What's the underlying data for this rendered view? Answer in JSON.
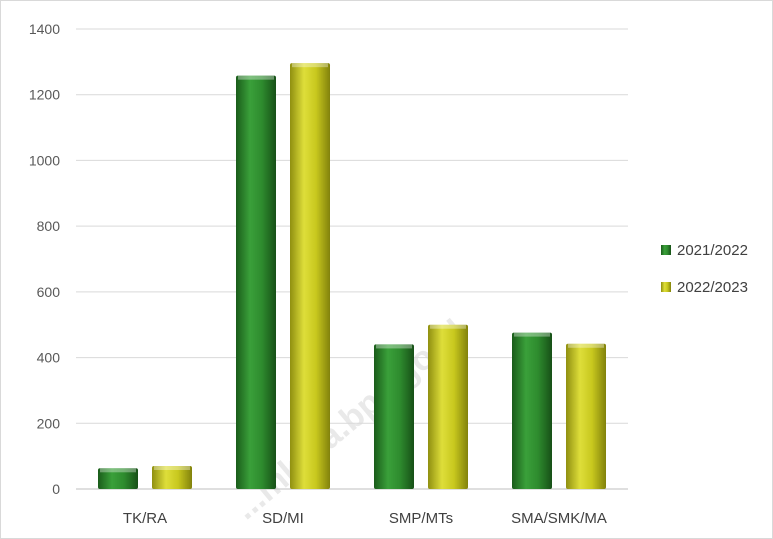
{
  "chart_data": {
    "type": "bar",
    "categories": [
      "TK/RA",
      "SD/MI",
      "SMP/MTs",
      "SMA/SMK/MA"
    ],
    "series": [
      {
        "name": "2021/2022",
        "values": [
          63,
          1258,
          440,
          476
        ],
        "color": "#2e8b2e"
      },
      {
        "name": "2022/2023",
        "values": [
          70,
          1296,
          500,
          442
        ],
        "color": "#c8c81e"
      }
    ],
    "ylim": [
      0,
      1400
    ],
    "yticks": [
      0,
      200,
      400,
      600,
      800,
      1000,
      1200,
      1400
    ],
    "grid": true,
    "legend_position": "right",
    "watermark": "...mkota.bps.go.id"
  }
}
